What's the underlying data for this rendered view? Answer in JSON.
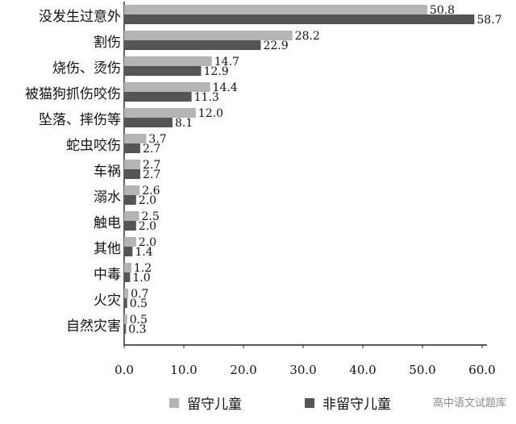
{
  "chart_data": {
    "type": "bar",
    "orientation": "horizontal",
    "categories": [
      "没发生过意外",
      "割伤",
      "烧伤、烫伤",
      "被猫狗抓伤咬伤",
      "坠落、摔伤等",
      "蛇虫咬伤",
      "车祸",
      "溺水",
      "触电",
      "其他",
      "中毒",
      "火灾",
      "自然灾害"
    ],
    "series": [
      {
        "name": "留守儿童",
        "color": "#b4b4b4",
        "values": [
          50.8,
          28.2,
          14.7,
          14.4,
          12.0,
          3.7,
          2.7,
          2.6,
          2.5,
          2.0,
          1.2,
          0.7,
          0.5
        ]
      },
      {
        "name": "非留守儿童",
        "color": "#555555",
        "values": [
          58.7,
          22.9,
          12.9,
          11.3,
          8.1,
          2.7,
          2.7,
          2.0,
          2.0,
          1.4,
          1.0,
          0.5,
          0.3
        ]
      }
    ],
    "xlim": [
      0,
      60
    ],
    "xticks": [
      "0.0",
      "10.0",
      "20.0",
      "30.0",
      "40.0",
      "50.0",
      "60.0"
    ],
    "legend_position": "bottom",
    "grid": false
  },
  "watermark": "高中语文试题库"
}
